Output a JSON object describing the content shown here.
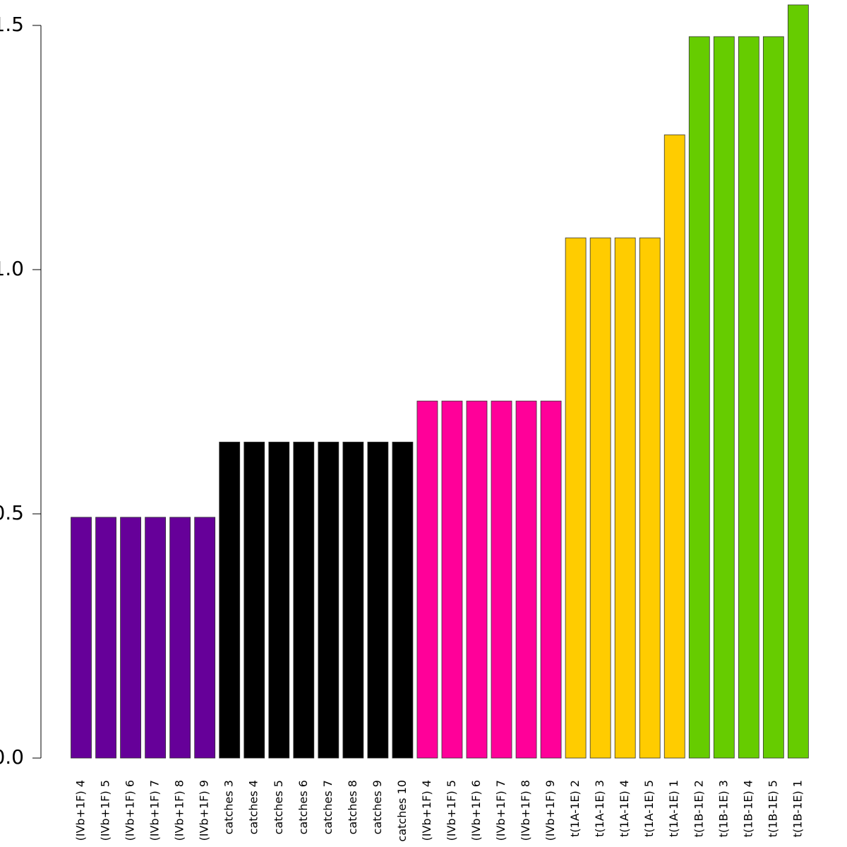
{
  "chart_data": {
    "type": "bar",
    "categories": [
      "(IVb+1F) 4",
      "(IVb+1F) 5",
      "(IVb+1F) 6",
      "(IVb+1F) 7",
      "(IVb+1F) 8",
      "(IVb+1F) 9",
      "catches 3",
      "catches 4",
      "catches 5",
      "catches 6",
      "catches 7",
      "catches 8",
      "catches 9",
      "catches 10",
      "(IVb+1F) 4",
      "(IVb+1F) 5",
      "(IVb+1F) 6",
      "(IVb+1F) 7",
      "(IVb+1F) 8",
      "(IVb+1F) 9",
      "t(1A-1E) 2",
      "t(1A-1E) 3",
      "t(1A-1E) 4",
      "t(1A-1E) 5",
      "t(1A-1E) 1",
      "t(1B-1E) 2",
      "t(1B-1E) 3",
      "t(1B-1E) 4",
      "t(1B-1E) 5",
      "t(1B-1E) 1"
    ],
    "values": [
      0.493,
      0.493,
      0.493,
      0.493,
      0.493,
      0.493,
      0.647,
      0.647,
      0.647,
      0.647,
      0.647,
      0.647,
      0.647,
      0.647,
      0.731,
      0.731,
      0.731,
      0.731,
      0.731,
      0.731,
      1.065,
      1.065,
      1.065,
      1.065,
      1.276,
      1.477,
      1.477,
      1.477,
      1.477,
      1.542
    ],
    "colors": [
      "#660099",
      "#660099",
      "#660099",
      "#660099",
      "#660099",
      "#660099",
      "#000000",
      "#000000",
      "#000000",
      "#000000",
      "#000000",
      "#000000",
      "#000000",
      "#000000",
      "#ff0099",
      "#ff0099",
      "#ff0099",
      "#ff0099",
      "#ff0099",
      "#ff0099",
      "#ffcc00",
      "#ffcc00",
      "#ffcc00",
      "#ffcc00",
      "#ffcc00",
      "#66cc00",
      "#66cc00",
      "#66cc00",
      "#66cc00",
      "#66cc00"
    ],
    "ylim": [
      0,
      1.55
    ],
    "yticks": [
      {
        "value": 0,
        "label": "0.0"
      },
      {
        "value": 0.5,
        "label": "0.5"
      },
      {
        "value": 1,
        "label": "1.0"
      },
      {
        "value": 1.5,
        "label": "1.5"
      }
    ]
  }
}
